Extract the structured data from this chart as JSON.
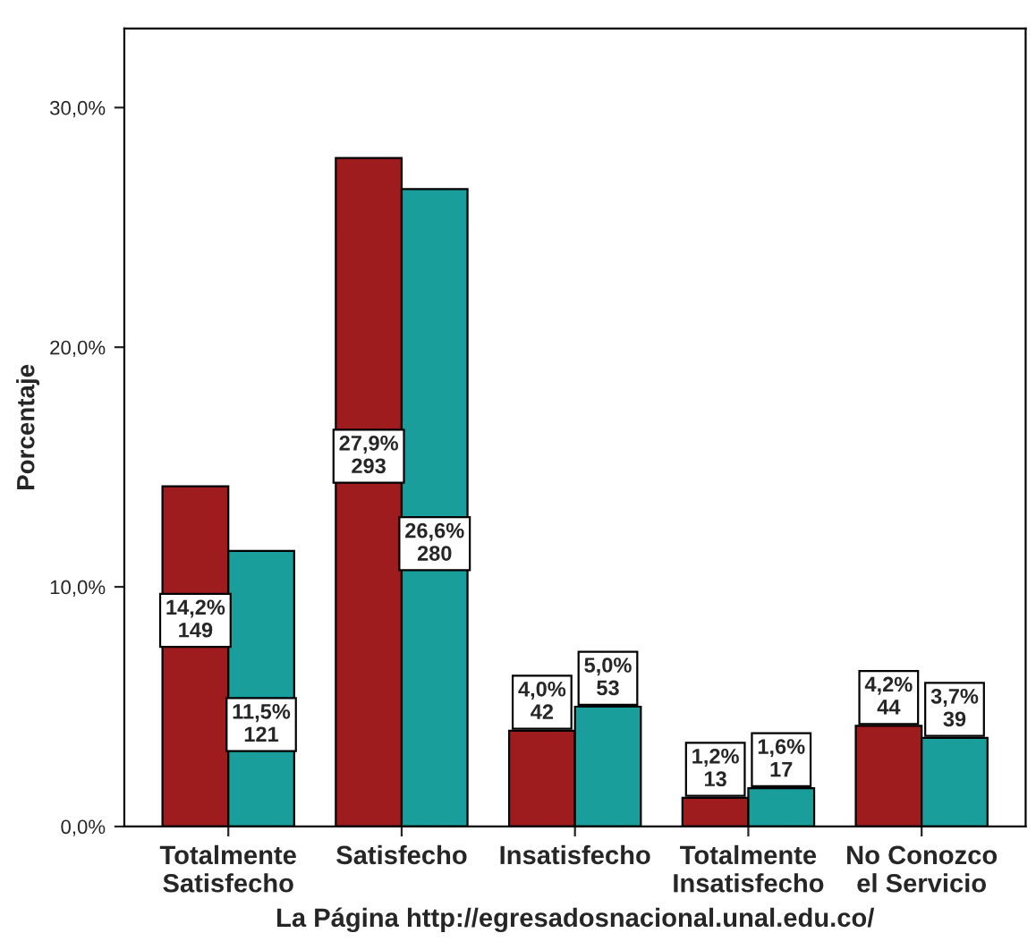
{
  "chart_data": {
    "type": "bar",
    "xlabel": "La Página http://egresadosnacional.unal.edu.co/",
    "ylabel": "Porcentaje",
    "categories": [
      "Totalmente\nSatisfecho",
      "Satisfecho",
      "Insatisfecho",
      "Totalmente\nInsatisfecho",
      "No Conozco\nel Servicio"
    ],
    "series": [
      {
        "color": "#9e1b1e",
        "values": [
          14.2,
          27.9,
          4.0,
          1.2,
          4.2
        ],
        "value_labels": [
          "14,2%\n149",
          "27,9%\n293",
          "4,0%\n42",
          "1,2%\n13",
          "4,2%\n44"
        ]
      },
      {
        "color": "#1a9e9b",
        "values": [
          11.5,
          26.6,
          5.0,
          1.6,
          3.7
        ],
        "value_labels": [
          "11,5%\n121",
          "26,6%\n280",
          "5,0%\n53",
          "1,6%\n17",
          "3,7%\n39"
        ]
      }
    ],
    "ylim": [
      0,
      33.3
    ],
    "yticks": [
      {
        "value": 0,
        "label": "0,0%"
      },
      {
        "value": 10,
        "label": "10,0%"
      },
      {
        "value": 20,
        "label": "20,0%"
      },
      {
        "value": 30,
        "label": "30,0%"
      }
    ],
    "grid": false
  }
}
